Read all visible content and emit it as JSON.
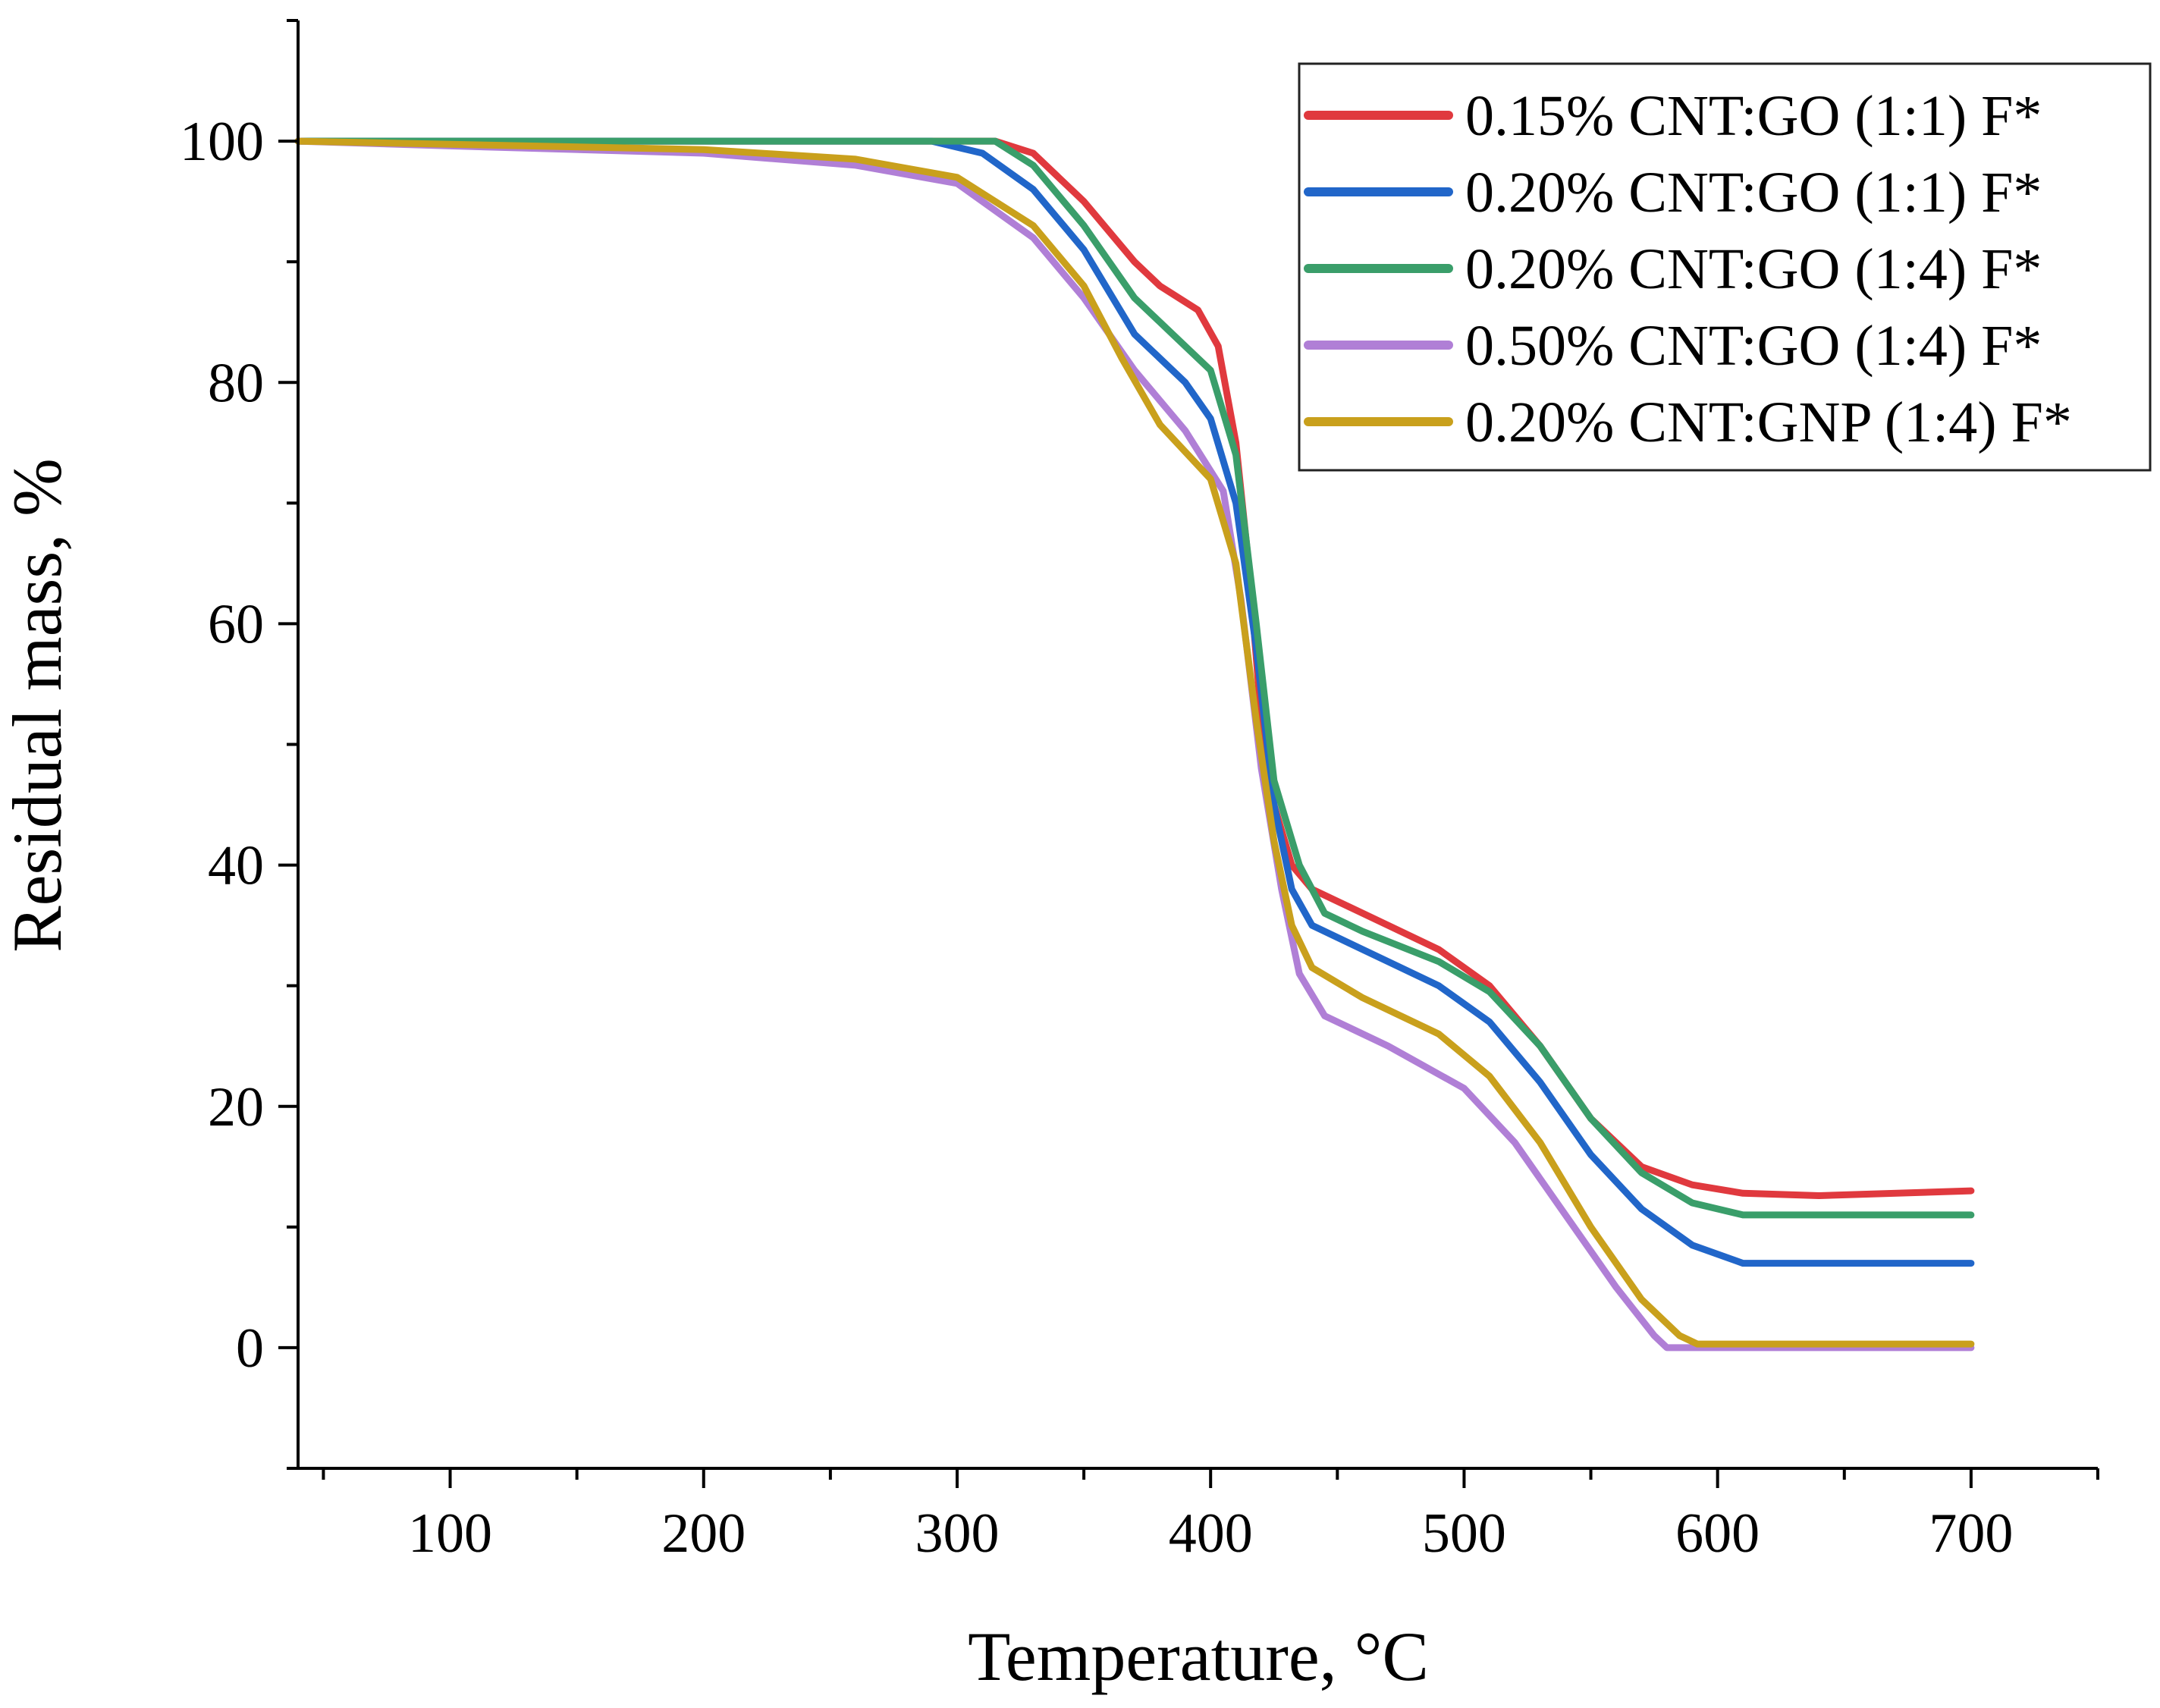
{
  "chart_data": {
    "type": "line",
    "title": "",
    "xlabel": "Temperature, °C",
    "ylabel": "Residual mass, %",
    "xlim": [
      40,
      750
    ],
    "ylim": [
      -10,
      110
    ],
    "xticks": [
      100,
      200,
      300,
      400,
      500,
      600,
      700
    ],
    "yticks": [
      0,
      20,
      40,
      60,
      80,
      100
    ],
    "grid": false,
    "legend_position": "top-right",
    "series": [
      {
        "name": "0.15% CNT:GO (1:1) F*",
        "color": "#e0393e",
        "x": [
          40,
          200,
          315,
          330,
          350,
          370,
          380,
          395,
          403,
          410,
          415,
          420,
          425,
          432,
          440,
          450,
          470,
          490,
          510,
          530,
          550,
          570,
          590,
          610,
          640,
          700
        ],
        "y": [
          100,
          100,
          100,
          99,
          95,
          90,
          88,
          86,
          83,
          75,
          65,
          52,
          45,
          40,
          38,
          37,
          35,
          33,
          30,
          25,
          19,
          15,
          13.5,
          12.8,
          12.6,
          13
        ]
      },
      {
        "name": "0.20% CNT:GO (1:1) F*",
        "color": "#2166c9",
        "x": [
          40,
          200,
          290,
          310,
          330,
          350,
          370,
          390,
          400,
          410,
          418,
          425,
          432,
          440,
          460,
          490,
          510,
          530,
          550,
          570,
          590,
          610,
          700
        ],
        "y": [
          100,
          100,
          100,
          99,
          96,
          91,
          84,
          80,
          77,
          70,
          58,
          45,
          38,
          35,
          33,
          30,
          27,
          22,
          16,
          11.5,
          8.5,
          7,
          7
        ]
      },
      {
        "name": "0.20% CNT:GO (1:4) F*",
        "color": "#3a9e6a",
        "x": [
          40,
          200,
          315,
          330,
          350,
          370,
          385,
          400,
          410,
          418,
          425,
          435,
          445,
          460,
          490,
          510,
          530,
          550,
          570,
          590,
          610,
          640,
          700
        ],
        "y": [
          100,
          100,
          100,
          98,
          93,
          87,
          84,
          81,
          74,
          60,
          47,
          40,
          36,
          34.5,
          32,
          29.5,
          25,
          19,
          14.5,
          12,
          11,
          11,
          11
        ]
      },
      {
        "name": "0.50% CNT:GO (1:4) F*",
        "color": "#b07fd6",
        "x": [
          40,
          100,
          200,
          260,
          300,
          330,
          350,
          370,
          390,
          405,
          412,
          420,
          428,
          435,
          445,
          470,
          500,
          520,
          540,
          560,
          575,
          580,
          700
        ],
        "y": [
          100,
          99.6,
          99,
          98,
          96.5,
          92,
          87,
          81,
          76,
          71,
          62,
          48,
          38,
          31,
          27.5,
          25,
          21.5,
          17,
          11,
          5,
          1,
          0,
          0
        ]
      },
      {
        "name": "0.20% CNT:GNP (1:4) F*",
        "color": "#c9a01c",
        "x": [
          40,
          200,
          260,
          300,
          330,
          350,
          365,
          380,
          400,
          410,
          418,
          425,
          432,
          440,
          460,
          490,
          510,
          530,
          550,
          570,
          585,
          592,
          700
        ],
        "y": [
          100,
          99.3,
          98.5,
          97,
          93,
          88,
          82,
          76.5,
          72,
          65,
          52,
          42,
          35,
          31.5,
          29,
          26,
          22.5,
          17,
          10,
          4,
          1,
          0.3,
          0.3
        ]
      }
    ]
  }
}
